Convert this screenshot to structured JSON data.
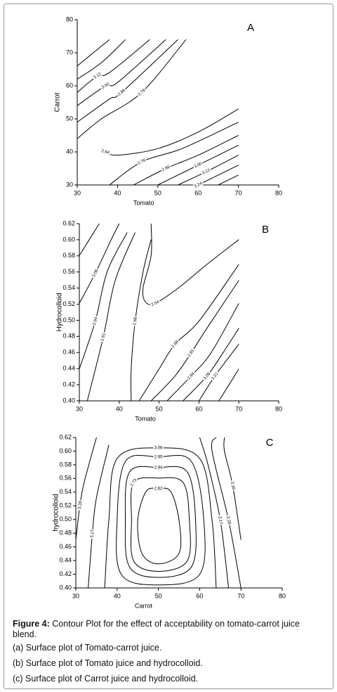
{
  "chart_data": [
    {
      "type": "contour",
      "panel_label": "A",
      "x_label": "Tomato",
      "y_label": "Carrot",
      "xlim": [
        30,
        80
      ],
      "ylim": [
        30,
        80
      ],
      "xticks": [
        30,
        40,
        50,
        60,
        70,
        80
      ],
      "yticks": [
        30,
        40,
        50,
        60,
        70,
        80
      ],
      "contour_levels": [
        3.12,
        3.0,
        2.88,
        2.76,
        2.64,
        2.76,
        2.88,
        3.0,
        3.12,
        3.24
      ],
      "contour_level_labels": [
        "3.12",
        "3.00",
        "2.88",
        "2.76",
        "2.64",
        "2.76",
        "2.88",
        "3.00",
        "3.12",
        "3.24"
      ]
    },
    {
      "type": "contour",
      "panel_label": "B",
      "x_label": "Tomato",
      "y_label": "Hydrocolloid",
      "xlim": [
        30,
        80
      ],
      "ylim": [
        0.4,
        0.62
      ],
      "xticks": [
        30,
        40,
        50,
        60,
        70,
        80
      ],
      "yticks": [
        {
          "value": 0.4,
          "label": "0.40"
        },
        {
          "value": 0.42,
          "label": "0.42"
        },
        {
          "value": 0.44,
          "label": "0.44"
        },
        {
          "value": 0.46,
          "label": "0.46"
        },
        {
          "value": 0.48,
          "label": "0.48"
        },
        {
          "value": 0.5,
          "label": "0.50"
        },
        {
          "value": 0.52,
          "label": "0.52"
        },
        {
          "value": 0.54,
          "label": "0.54"
        },
        {
          "value": 0.56,
          "label": "0.56"
        },
        {
          "value": 0.58,
          "label": "0.58"
        },
        {
          "value": 0.6,
          "label": "0.60"
        },
        {
          "value": 0.62,
          "label": "0.62"
        }
      ],
      "contour_levels": [
        3.06,
        2.94,
        2.81,
        2.68,
        2.54,
        2.68,
        2.81,
        2.94,
        3.06,
        3.21
      ],
      "contour_level_labels": [
        "3.06",
        "2.94",
        "2.81",
        "2.68",
        "2.54",
        "2.68",
        "2.81",
        "2.94",
        "3.06",
        "3.21"
      ]
    },
    {
      "type": "contour",
      "panel_label": "C",
      "x_label": "Carrot",
      "y_label": "hydrocolloid",
      "xlim": [
        30,
        80
      ],
      "ylim": [
        0.4,
        0.62
      ],
      "xticks": [
        30,
        40,
        50,
        60,
        70,
        80
      ],
      "yticks": [
        {
          "value": 0.4,
          "label": "0.40"
        },
        {
          "value": 0.42,
          "label": "0.42"
        },
        {
          "value": 0.44,
          "label": "0.44"
        },
        {
          "value": 0.46,
          "label": "0.46"
        },
        {
          "value": 0.48,
          "label": "0.48"
        },
        {
          "value": 0.5,
          "label": "0.50"
        },
        {
          "value": 0.52,
          "label": "0.52"
        },
        {
          "value": 0.54,
          "label": "0.54"
        },
        {
          "value": 0.56,
          "label": "0.56"
        },
        {
          "value": 0.58,
          "label": "0.58"
        },
        {
          "value": 0.6,
          "label": "0.60"
        },
        {
          "value": 0.62,
          "label": "0.62"
        }
      ],
      "contour_levels": [
        3.28,
        3.17,
        3.06,
        2.95,
        2.84,
        2.73,
        2.62,
        3.17,
        3.28,
        3.39
      ],
      "contour_level_labels": [
        "3.28",
        "3.17",
        "3.06",
        "2.95",
        "2.84",
        "2.73",
        "2.62",
        "3.17",
        "3.28",
        "3.39"
      ]
    }
  ],
  "caption": {
    "figure_label": "Figure 4:",
    "text": "Contour Plot for the effect of acceptability on tomato-carrot juice blend.",
    "items": [
      "(a) Surface plot of Tomato-carrot juice.",
      "(b) Surface plot of Tomato juice and hydrocolloid.",
      "(c)  Surface plot of Carrot juice and hydrocolloid."
    ]
  }
}
